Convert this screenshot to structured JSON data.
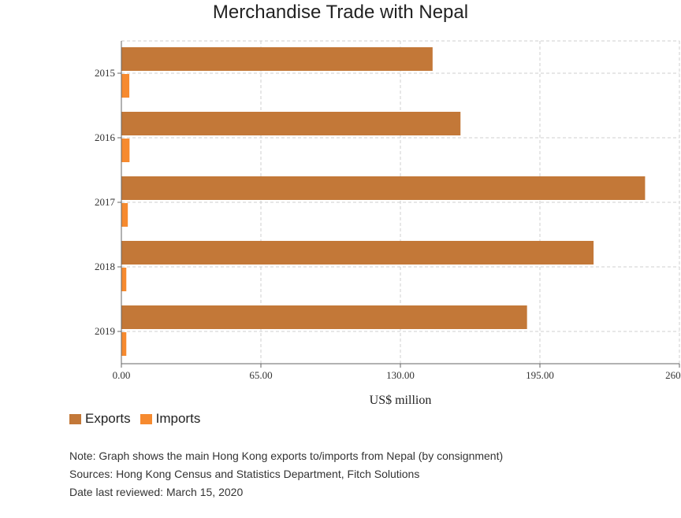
{
  "chart_data": {
    "type": "bar",
    "orientation": "horizontal",
    "title": "Merchandise Trade with Nepal",
    "xlabel": "US$ million",
    "ylabel": "",
    "categories": [
      "2015",
      "2016",
      "2017",
      "2018",
      "2019"
    ],
    "series": [
      {
        "name": "Exports",
        "color": "#c37838",
        "values": [
          145,
          158,
          244,
          220,
          189
        ]
      },
      {
        "name": "Imports",
        "color": "#f68a2f",
        "values": [
          3.7,
          3.8,
          3.0,
          2.3,
          2.3
        ]
      }
    ],
    "xlim": [
      0,
      260
    ],
    "xticks": [
      "0.00",
      "65.00",
      "130.00",
      "195.00",
      "260.00"
    ],
    "grid": true,
    "legend_position": "bottom-left"
  },
  "notes": {
    "note": "Note: Graph shows the main Hong Kong exports to/imports from Nepal (by consignment)",
    "sources": "Sources: Hong Kong Census and Statistics Department, Fitch Solutions",
    "reviewed": "Date last reviewed: March 15, 2020"
  }
}
